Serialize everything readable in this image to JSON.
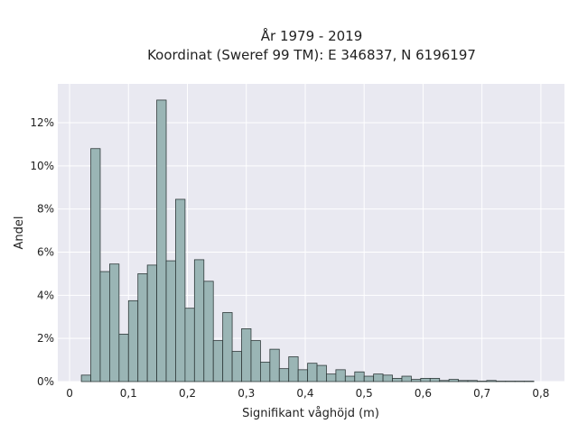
{
  "chart_data": {
    "type": "bar",
    "title": "År 1979 - 2019",
    "subtitle": "Koordinat (Sweref 99 TM): E 346837, N 6196197",
    "xlabel": "Signifikant våghöjd (m)",
    "ylabel": "Andel",
    "xlim": [
      -0.02,
      0.84
    ],
    "ylim": [
      0,
      13.8
    ],
    "x_ticks": [
      0,
      0.1,
      0.2,
      0.3,
      0.4,
      0.5,
      0.6,
      0.7,
      0.8
    ],
    "x_tick_labels": [
      "0",
      "0,1",
      "0,2",
      "0,3",
      "0,4",
      "0,5",
      "0,6",
      "0,7",
      "0,8"
    ],
    "y_ticks": [
      0,
      2,
      4,
      6,
      8,
      10,
      12
    ],
    "y_tick_labels": [
      "0%",
      "2%",
      "4%",
      "6%",
      "8%",
      "10%",
      "12%"
    ],
    "y_unit": "%",
    "grid": true,
    "bin_width": 0.016,
    "bin_starts": [
      0.02,
      0.036,
      0.052,
      0.068,
      0.084,
      0.1,
      0.116,
      0.132,
      0.148,
      0.164,
      0.18,
      0.196,
      0.212,
      0.228,
      0.244,
      0.26,
      0.276,
      0.292,
      0.308,
      0.324,
      0.34,
      0.356,
      0.372,
      0.388,
      0.404,
      0.42,
      0.436,
      0.452,
      0.468,
      0.484,
      0.5,
      0.516,
      0.532,
      0.548,
      0.564,
      0.58,
      0.596,
      0.612,
      0.628,
      0.644,
      0.66,
      0.676,
      0.692,
      0.708,
      0.724,
      0.74,
      0.756,
      0.772
    ],
    "values": [
      0.3,
      10.8,
      5.1,
      5.45,
      2.2,
      3.75,
      5.0,
      5.4,
      13.05,
      5.6,
      8.45,
      3.4,
      5.65,
      4.65,
      1.9,
      3.2,
      1.4,
      2.45,
      1.9,
      0.9,
      1.5,
      0.6,
      1.15,
      0.55,
      0.85,
      0.75,
      0.35,
      0.55,
      0.25,
      0.45,
      0.25,
      0.35,
      0.3,
      0.15,
      0.25,
      0.1,
      0.15,
      0.15,
      0.05,
      0.1,
      0.05,
      0.05,
      0.02,
      0.05,
      0.02,
      0.02,
      0.02,
      0.02
    ],
    "colors": {
      "bar_fill": "#9ab5b5",
      "bar_edge": "#2f3a3a",
      "plot_background": "#e9e9f1",
      "grid": "#ffffff"
    }
  }
}
